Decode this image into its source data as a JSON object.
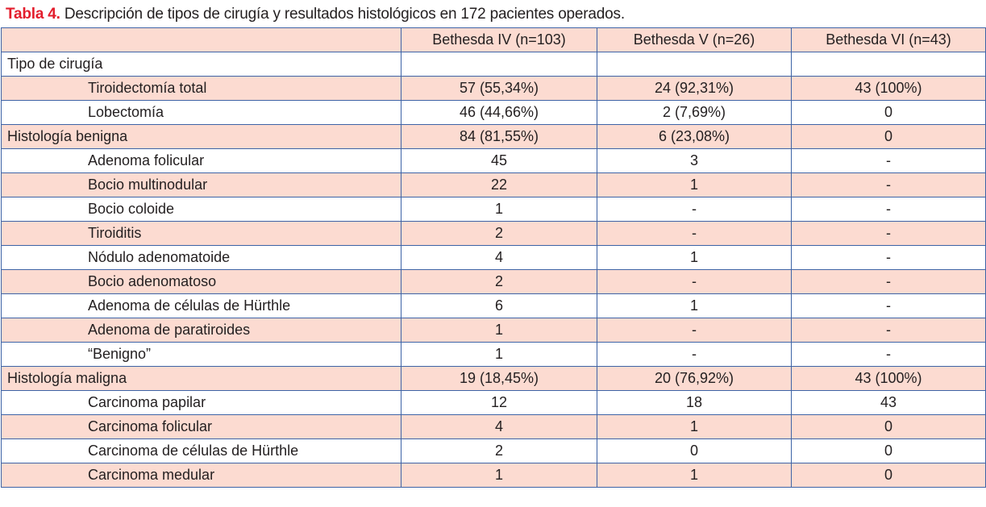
{
  "caption": {
    "label": "Tabla 4.",
    "text": " Descripción de tipos de cirugía y resultados histológicos en 172 pacientes operados."
  },
  "colors": {
    "caption_label": "#e31e2d",
    "row_highlight": "#fcdbd1",
    "border": "#3d63a6"
  },
  "table": {
    "headers": [
      "",
      "Bethesda IV (n=103)",
      "Bethesda V (n=26)",
      "Bethesda VI (n=43)"
    ],
    "rows": [
      {
        "label": "Tipo de cirugía",
        "indent": false,
        "values": [
          "",
          "",
          ""
        ]
      },
      {
        "label": "Tiroidectomía total",
        "indent": true,
        "values": [
          "57 (55,34%)",
          "24 (92,31%)",
          "43 (100%)"
        ]
      },
      {
        "label": "Lobectomía",
        "indent": true,
        "values": [
          "46 (44,66%)",
          "2 (7,69%)",
          "0"
        ]
      },
      {
        "label": "Histología benigna",
        "indent": false,
        "values": [
          "84 (81,55%)",
          "6 (23,08%)",
          "0"
        ]
      },
      {
        "label": "Adenoma folicular",
        "indent": true,
        "values": [
          "45",
          "3",
          "-"
        ]
      },
      {
        "label": "Bocio multinodular",
        "indent": true,
        "values": [
          "22",
          "1",
          "-"
        ]
      },
      {
        "label": "Bocio coloide",
        "indent": true,
        "values": [
          "1",
          "-",
          "-"
        ]
      },
      {
        "label": "Tiroiditis",
        "indent": true,
        "values": [
          "2",
          "-",
          "-"
        ]
      },
      {
        "label": "Nódulo adenomatoide",
        "indent": true,
        "values": [
          "4",
          "1",
          "-"
        ]
      },
      {
        "label": "Bocio adenomatoso",
        "indent": true,
        "values": [
          "2",
          "-",
          "-"
        ]
      },
      {
        "label": "Adenoma de células de Hürthle",
        "indent": true,
        "values": [
          "6",
          "1",
          "-"
        ]
      },
      {
        "label": "Adenoma de paratiroides",
        "indent": true,
        "values": [
          "1",
          "-",
          "-"
        ]
      },
      {
        "label": "“Benigno”",
        "indent": true,
        "values": [
          "1",
          "-",
          "-"
        ]
      },
      {
        "label": "Histología maligna",
        "indent": false,
        "values": [
          "19 (18,45%)",
          "20 (76,92%)",
          "43 (100%)"
        ]
      },
      {
        "label": "Carcinoma papilar",
        "indent": true,
        "values": [
          "12",
          "18",
          "43"
        ]
      },
      {
        "label": "Carcinoma folicular",
        "indent": true,
        "values": [
          "4",
          "1",
          "0"
        ]
      },
      {
        "label": "Carcinoma de células de Hürthle",
        "indent": true,
        "values": [
          "2",
          "0",
          "0"
        ]
      },
      {
        "label": "Carcinoma medular",
        "indent": true,
        "values": [
          "1",
          "1",
          "0"
        ]
      }
    ]
  }
}
